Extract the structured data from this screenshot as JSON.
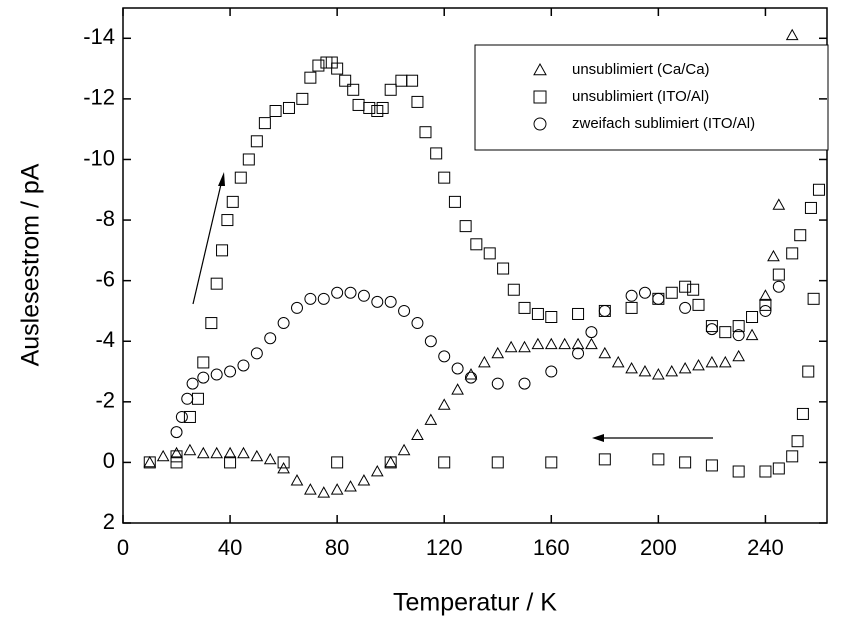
{
  "chart_data": {
    "type": "scatter",
    "xlabel": "Temperatur / K",
    "ylabel": "Auslesestrom / pA",
    "xlim": [
      0,
      263
    ],
    "xticks": [
      0,
      40,
      80,
      120,
      160,
      200,
      240
    ],
    "ylim": [
      2,
      -15
    ],
    "yticks": [
      2,
      0,
      -2,
      -4,
      -6,
      -8,
      -10,
      -12,
      -14
    ],
    "legend": "upper right",
    "series": [
      {
        "name": "unsublimiert (Ca/Ca)",
        "color": "#000000",
        "marker": "triangle",
        "x": [
          10,
          15,
          20,
          25,
          30,
          35,
          40,
          45,
          50,
          55,
          60,
          65,
          70,
          75,
          80,
          85,
          90,
          95,
          100,
          105,
          110,
          115,
          120,
          125,
          130,
          135,
          140,
          145,
          150,
          155,
          160,
          165,
          170,
          175,
          180,
          185,
          190,
          195,
          200,
          205,
          210,
          215,
          220,
          225,
          230,
          235,
          240,
          243,
          245,
          250
        ],
        "values": [
          0,
          -0.2,
          -0.3,
          -0.4,
          -0.3,
          -0.3,
          -0.3,
          -0.3,
          -0.2,
          -0.1,
          0.2,
          0.6,
          0.9,
          1.0,
          0.9,
          0.8,
          0.6,
          0.3,
          0,
          -0.4,
          -0.9,
          -1.4,
          -1.9,
          -2.4,
          -2.9,
          -3.3,
          -3.6,
          -3.8,
          -3.8,
          -3.9,
          -3.9,
          -3.9,
          -3.9,
          -3.9,
          -3.6,
          -3.3,
          -3.1,
          -3.0,
          -2.9,
          -3.0,
          -3.1,
          -3.2,
          -3.3,
          -3.3,
          -3.5,
          -4.2,
          -5.5,
          -6.8,
          -8.5,
          -14.1
        ]
      },
      {
        "name": "unsublimiert (ITO/Al)",
        "color": "#000000",
        "marker": "square",
        "x": [
          10,
          20,
          25,
          28,
          30,
          33,
          35,
          37,
          39,
          41,
          44,
          47,
          50,
          53,
          57,
          62,
          67,
          70,
          73,
          76,
          78,
          80,
          83,
          86,
          88,
          92,
          95,
          97,
          100,
          104,
          108,
          110,
          113,
          117,
          120,
          124,
          128,
          132,
          137,
          142,
          146,
          150,
          155,
          160,
          170,
          180,
          190,
          200,
          205,
          210,
          213,
          215,
          220,
          225,
          230,
          235,
          240,
          245,
          250,
          253,
          257,
          260,
          258,
          256,
          254,
          252,
          250,
          245,
          240,
          230,
          220,
          210,
          200,
          180,
          160,
          140,
          120,
          100,
          80,
          60,
          40,
          20
        ],
        "values": [
          0,
          -0.2,
          -1.5,
          -2.1,
          -3.3,
          -4.6,
          -5.9,
          -7.0,
          -8.0,
          -8.6,
          -9.4,
          -10.0,
          -10.6,
          -11.2,
          -11.6,
          -11.7,
          -12.0,
          -12.7,
          -13.1,
          -13.2,
          -13.2,
          -13.0,
          -12.6,
          -12.3,
          -11.8,
          -11.7,
          -11.6,
          -11.7,
          -12.3,
          -12.6,
          -12.6,
          -11.9,
          -10.9,
          -10.2,
          -9.4,
          -8.6,
          -7.8,
          -7.2,
          -6.9,
          -6.4,
          -5.7,
          -5.1,
          -4.9,
          -4.8,
          -4.9,
          -5.0,
          -5.1,
          -5.4,
          -5.6,
          -5.8,
          -5.7,
          -5.2,
          -4.5,
          -4.3,
          -4.5,
          -4.8,
          -5.2,
          -6.2,
          -6.9,
          -7.5,
          -8.4,
          -9.0,
          -5.4,
          -3.0,
          -1.6,
          -0.7,
          -0.2,
          0.2,
          0.3,
          0.3,
          0.1,
          0,
          -0.1,
          -0.1,
          0,
          0,
          0,
          0,
          0,
          0,
          0,
          0
        ]
      },
      {
        "name": "zweifach sublimiert (ITO/Al)",
        "color": "#000000",
        "marker": "circle",
        "x": [
          20,
          22,
          24,
          26,
          30,
          35,
          40,
          45,
          50,
          55,
          60,
          65,
          70,
          75,
          80,
          85,
          90,
          95,
          100,
          105,
          110,
          115,
          120,
          125,
          130,
          140,
          150,
          160,
          170,
          175,
          180,
          190,
          195,
          200,
          210,
          220,
          230,
          240,
          245
        ],
        "values": [
          -1.0,
          -1.5,
          -2.1,
          -2.6,
          -2.8,
          -2.9,
          -3.0,
          -3.2,
          -3.6,
          -4.1,
          -4.6,
          -5.1,
          -5.4,
          -5.4,
          -5.6,
          -5.6,
          -5.5,
          -5.3,
          -5.3,
          -5.0,
          -4.6,
          -4.0,
          -3.5,
          -3.1,
          -2.8,
          -2.6,
          -2.6,
          -3.0,
          -3.6,
          -4.3,
          -5.0,
          -5.5,
          -5.6,
          -5.4,
          -5.1,
          -4.4,
          -4.2,
          -5.0,
          -5.8
        ]
      }
    ]
  }
}
